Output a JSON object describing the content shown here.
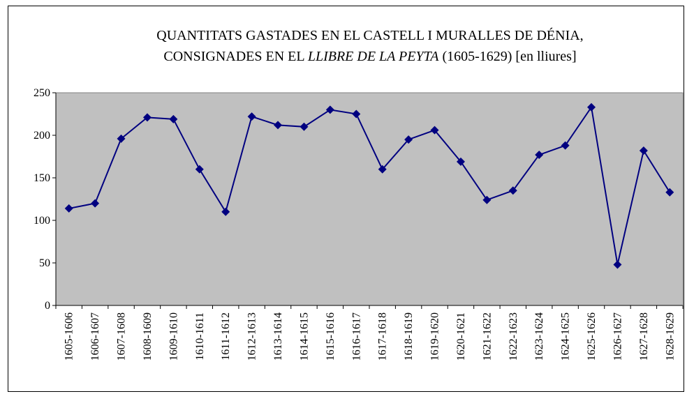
{
  "chart_data": {
    "type": "line",
    "title": [
      "QUANTITATS GASTADES EN EL CASTELL I MURALLES DE DÉNIA,",
      "CONSIGNADES EN EL",
      "LLIBRE DE LA PEYTA",
      "(1605-1629) [en lliures]"
    ],
    "categories": [
      "1605-1606",
      "1606-1607",
      "1607-1608",
      "1608-1609",
      "1609-1610",
      "1610-1611",
      "1611-1612",
      "1612-1613",
      "1613-1614",
      "1614-1615",
      "1615-1616",
      "1616-1617",
      "1617-1618",
      "1618-1619",
      "1619-1620",
      "1620-1621",
      "1621-1622",
      "1622-1623",
      "1623-1624",
      "1624-1625",
      "1625-1626",
      "1626-1627",
      "1627-1628",
      "1628-1629"
    ],
    "series": [
      {
        "color": "#000080",
        "values": [
          114,
          120,
          196,
          221,
          219,
          160,
          110,
          222,
          212,
          210,
          230,
          225,
          160,
          195,
          206,
          169,
          124,
          135,
          177,
          188,
          233,
          48,
          182,
          133
        ]
      }
    ],
    "ylim": [
      0,
      250
    ],
    "yticks": [
      0,
      50,
      100,
      150,
      200,
      250
    ],
    "grid": false,
    "plot_background": "#c0c0c0"
  }
}
